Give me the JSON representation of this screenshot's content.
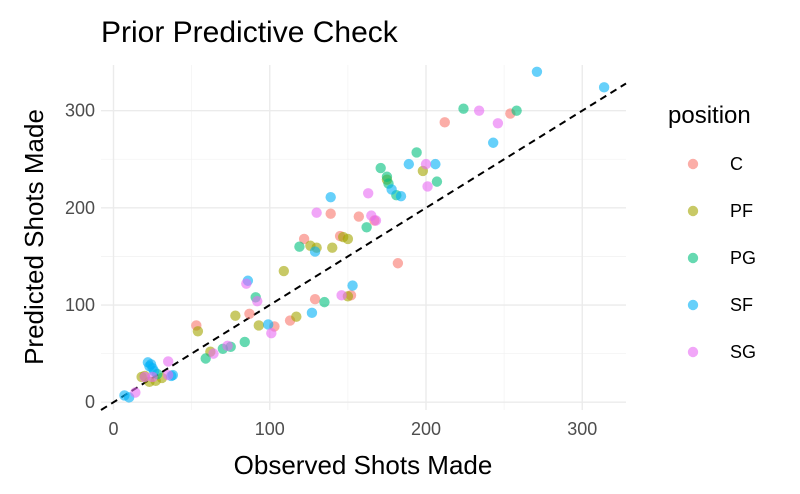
{
  "chart_data": {
    "type": "scatter",
    "title": "Prior Predictive Check",
    "xlabel": "Observed Shots Made",
    "ylabel": "Predicted Shots Made",
    "xlim": [
      -8,
      328
    ],
    "ylim": [
      -8,
      347
    ],
    "x_ticks": [
      0,
      100,
      200,
      300
    ],
    "y_ticks": [
      0,
      100,
      200,
      300
    ],
    "grid": true,
    "reference_line": {
      "style": "dashed",
      "slope": 1,
      "intercept": 0
    },
    "legend": {
      "title": "position",
      "placement": "right"
    },
    "series": [
      {
        "name": "C",
        "color": "#F8766D",
        "points": [
          [
            53,
            79
          ],
          [
            87,
            91
          ],
          [
            103,
            78
          ],
          [
            113,
            84
          ],
          [
            122,
            168
          ],
          [
            129,
            106
          ],
          [
            139,
            194
          ],
          [
            145,
            171
          ],
          [
            152,
            110
          ],
          [
            157,
            191
          ],
          [
            167,
            187
          ],
          [
            182,
            143
          ],
          [
            212,
            288
          ],
          [
            254,
            297
          ]
        ]
      },
      {
        "name": "PF",
        "color": "#A3A500",
        "points": [
          [
            18,
            26
          ],
          [
            20,
            27
          ],
          [
            23,
            21
          ],
          [
            27,
            22
          ],
          [
            31,
            25
          ],
          [
            54,
            73
          ],
          [
            62,
            52
          ],
          [
            78,
            89
          ],
          [
            93,
            79
          ],
          [
            109,
            135
          ],
          [
            117,
            88
          ],
          [
            126,
            161
          ],
          [
            130,
            159
          ],
          [
            140,
            159
          ],
          [
            147,
            170
          ],
          [
            150,
            168
          ],
          [
            150,
            109
          ],
          [
            175,
            229
          ],
          [
            198,
            238
          ]
        ]
      },
      {
        "name": "PG",
        "color": "#00BF7D",
        "points": [
          [
            28,
            29
          ],
          [
            59,
            45
          ],
          [
            70,
            55
          ],
          [
            75,
            57
          ],
          [
            84,
            62
          ],
          [
            91,
            108
          ],
          [
            119,
            160
          ],
          [
            135,
            103
          ],
          [
            162,
            180
          ],
          [
            171,
            241
          ],
          [
            175,
            232
          ],
          [
            176,
            225
          ],
          [
            181,
            213
          ],
          [
            194,
            257
          ],
          [
            207,
            227
          ],
          [
            224,
            302
          ],
          [
            258,
            300
          ]
        ]
      },
      {
        "name": "SF",
        "color": "#00B0F6",
        "points": [
          [
            7,
            7
          ],
          [
            10,
            5
          ],
          [
            22,
            41
          ],
          [
            23,
            37
          ],
          [
            24,
            39
          ],
          [
            25,
            35
          ],
          [
            26,
            32
          ],
          [
            37,
            27
          ],
          [
            38,
            28
          ],
          [
            86,
            125
          ],
          [
            99,
            80
          ],
          [
            127,
            92
          ],
          [
            129,
            155
          ],
          [
            139,
            211
          ],
          [
            153,
            120
          ],
          [
            178,
            219
          ],
          [
            184,
            212
          ],
          [
            189,
            245
          ],
          [
            206,
            245
          ],
          [
            243,
            267
          ],
          [
            271,
            340
          ],
          [
            314,
            324
          ]
        ]
      },
      {
        "name": "SG",
        "color": "#E76BF3",
        "points": [
          [
            14,
            10
          ],
          [
            20,
            26
          ],
          [
            25,
            26
          ],
          [
            35,
            42
          ],
          [
            35,
            28
          ],
          [
            64,
            50
          ],
          [
            73,
            58
          ],
          [
            85,
            122
          ],
          [
            92,
            104
          ],
          [
            101,
            71
          ],
          [
            130,
            195
          ],
          [
            146,
            110
          ],
          [
            163,
            215
          ],
          [
            165,
            192
          ],
          [
            168,
            187
          ],
          [
            200,
            245
          ],
          [
            201,
            222
          ],
          [
            234,
            300
          ],
          [
            246,
            287
          ]
        ]
      }
    ]
  }
}
